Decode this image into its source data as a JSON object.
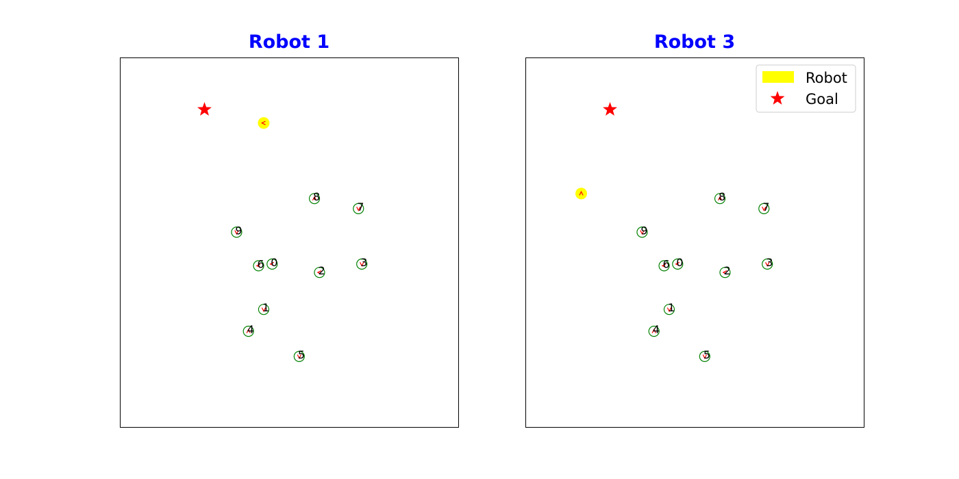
{
  "chart_data": [
    {
      "type": "scatter",
      "title": "Robot 1",
      "robot": {
        "x": 4.25,
        "y": 9.05,
        "heading": "left"
      },
      "goal": {
        "x": 2.5,
        "y": 9.45
      },
      "agents": [
        {
          "label": "0",
          "x": 4.5,
          "y": 4.85,
          "heading": "left"
        },
        {
          "label": "1",
          "x": 4.25,
          "y": 3.5,
          "heading": "down"
        },
        {
          "label": "2",
          "x": 5.9,
          "y": 4.6,
          "heading": "left"
        },
        {
          "label": "3",
          "x": 7.15,
          "y": 4.85,
          "heading": "down"
        },
        {
          "label": "4",
          "x": 3.8,
          "y": 2.85,
          "heading": "up"
        },
        {
          "label": "5",
          "x": 5.3,
          "y": 2.1,
          "heading": "down"
        },
        {
          "label": "6",
          "x": 4.1,
          "y": 4.8,
          "heading": "left"
        },
        {
          "label": "7",
          "x": 7.05,
          "y": 6.5,
          "heading": "down"
        },
        {
          "label": "8",
          "x": 5.75,
          "y": 6.8,
          "heading": "up"
        },
        {
          "label": "9",
          "x": 3.45,
          "y": 5.8,
          "heading": "down"
        }
      ],
      "xlim": [
        0,
        10
      ],
      "ylim": [
        0,
        11
      ],
      "legend": null
    },
    {
      "type": "scatter",
      "title": "Robot 3",
      "robot": {
        "x": 1.65,
        "y": 6.95,
        "heading": "up"
      },
      "goal": {
        "x": 2.5,
        "y": 9.45
      },
      "agents": [
        {
          "label": "0",
          "x": 4.5,
          "y": 4.85,
          "heading": "left"
        },
        {
          "label": "1",
          "x": 4.25,
          "y": 3.5,
          "heading": "down"
        },
        {
          "label": "2",
          "x": 5.9,
          "y": 4.6,
          "heading": "left"
        },
        {
          "label": "3",
          "x": 7.15,
          "y": 4.85,
          "heading": "down"
        },
        {
          "label": "4",
          "x": 3.8,
          "y": 2.85,
          "heading": "up"
        },
        {
          "label": "5",
          "x": 5.3,
          "y": 2.1,
          "heading": "down"
        },
        {
          "label": "6",
          "x": 4.1,
          "y": 4.8,
          "heading": "left"
        },
        {
          "label": "7",
          "x": 7.05,
          "y": 6.5,
          "heading": "down"
        },
        {
          "label": "8",
          "x": 5.75,
          "y": 6.8,
          "heading": "up"
        },
        {
          "label": "9",
          "x": 3.45,
          "y": 5.8,
          "heading": "down"
        }
      ],
      "xlim": [
        0,
        10
      ],
      "ylim": [
        0,
        11
      ],
      "legend": {
        "placement": "top-right",
        "entries": [
          {
            "label": "Robot",
            "marker": "yellow-patch"
          },
          {
            "label": "Goal",
            "marker": "red-star"
          }
        ]
      }
    }
  ],
  "colors": {
    "title": "#0000ff",
    "robot": "#ffff00",
    "goal": "#ff0000",
    "agent_ring": "#008000",
    "heading": "#ff0000"
  }
}
